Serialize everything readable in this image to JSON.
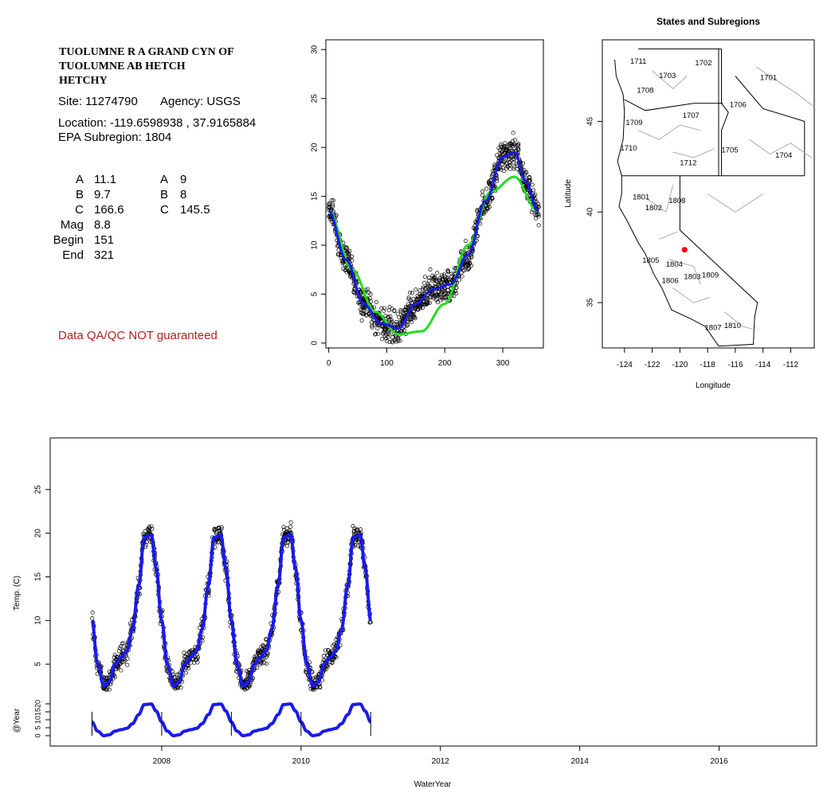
{
  "site": {
    "title_lines": [
      "TUOLUMNE R A GRAND CYN OF",
      "TUOLUMNE AB HETCH",
      "HETCHY"
    ],
    "site_line": "Site: 11274790",
    "agency_line": "Agency: USGS",
    "location_line": "Location: -119.6598938 , 37.9165884",
    "subregion_line": "EPA Subregion: 1804",
    "params": [
      {
        "label": "A",
        "v1": "11.1",
        "label2": "A",
        "v2": "9"
      },
      {
        "label": "B",
        "v1": "9.7",
        "label2": "B",
        "v2": "8"
      },
      {
        "label": "C",
        "v1": "166.6",
        "label2": "C",
        "v2": "145.5"
      }
    ],
    "mag_label": "Mag",
    "mag_value": "8.8",
    "begin_label": "Begin",
    "begin_value": "151",
    "end_label": "End",
    "end_value": "321",
    "qa_note": "Data QA/QC NOT guaranteed",
    "qa_color": "#b22222"
  },
  "chart_data": [
    {
      "type": "scatter",
      "title": "",
      "xlabel": "",
      "ylabel": "",
      "xlim": [
        -5,
        370
      ],
      "ylim": [
        -0.5,
        31
      ],
      "xticks": [
        0,
        100,
        200,
        300
      ],
      "yticks": [
        0,
        5,
        10,
        15,
        20,
        25,
        30
      ],
      "series": [
        {
          "kind": "points",
          "color": "#000000",
          "values_note": "daily temperatures by day of water year"
        },
        {
          "kind": "line",
          "color": "#22dd22",
          "x": [
            0,
            40,
            80,
            120,
            160,
            200,
            240,
            280,
            320,
            360
          ],
          "y": [
            13.5,
            7.5,
            3.2,
            0.9,
            1.2,
            4.0,
            10.0,
            15.5,
            17.0,
            13.5
          ]
        },
        {
          "kind": "line",
          "color": "#1a1aee",
          "x": [
            0,
            30,
            60,
            90,
            120,
            150,
            180,
            210,
            240,
            270,
            300,
            320,
            340,
            360
          ],
          "y": [
            13.5,
            8.5,
            4.0,
            2.0,
            1.5,
            4.0,
            5.5,
            6.0,
            9.0,
            14.5,
            19.0,
            19.5,
            16.5,
            13.5
          ]
        }
      ]
    },
    {
      "type": "map",
      "title": "States and Subregions",
      "xlabel": "Longitude",
      "ylabel": "Latitude",
      "xlim": [
        -125.6,
        -110.3
      ],
      "ylim": [
        32.5,
        49.5
      ],
      "xticks": [
        -124,
        -122,
        -120,
        -118,
        -116,
        -114,
        -112
      ],
      "yticks": [
        35,
        40,
        45
      ],
      "regions": [
        "1701",
        "1702",
        "1703",
        "1704",
        "1705",
        "1706",
        "1707",
        "1708",
        "1709",
        "1710",
        "1711",
        "1712",
        "1801",
        "1802",
        "1803",
        "1804",
        "1805",
        "1806",
        "1807",
        "1808",
        "1809",
        "1810"
      ],
      "site_point": {
        "lon": -119.66,
        "lat": 37.92,
        "color": "#ff0000"
      }
    },
    {
      "type": "line",
      "title": "",
      "xlabel": "WaterYear",
      "ylabel": "Temp. (C)",
      "ylabel2": "@Year",
      "xlim": [
        2006.4,
        2017.4
      ],
      "ylim": [
        1,
        30
      ],
      "xticks": [
        2008,
        2010,
        2012,
        2014,
        2016
      ],
      "yticks": [
        5,
        10,
        15,
        20,
        25
      ],
      "yticks2": [
        0,
        5,
        10,
        15,
        20
      ],
      "series": [
        {
          "kind": "points",
          "color": "#000000",
          "values_note": "daily temperatures 2007-2011"
        },
        {
          "kind": "line",
          "color": "#1a1aee",
          "peaks": [
            {
              "x": 2007.85,
              "y": 20
            },
            {
              "x": 2008.85,
              "y": 20
            },
            {
              "x": 2009.85,
              "y": 19.8
            },
            {
              "x": 2010.85,
              "y": 19.8
            }
          ],
          "troughs": [
            {
              "x": 2007.3,
              "y": 2.5
            },
            {
              "x": 2008.3,
              "y": 2.5
            },
            {
              "x": 2009.3,
              "y": 2.5
            },
            {
              "x": 2010.3,
              "y": 2.5
            }
          ]
        }
      ],
      "year_markers": [
        2007,
        2008,
        2009,
        2010,
        2011
      ]
    }
  ]
}
